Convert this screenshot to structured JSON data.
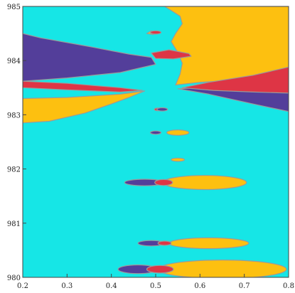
{
  "chart_data": {
    "type": "contour-region-plot",
    "title": "",
    "xlabel": "",
    "ylabel": "",
    "xlim": [
      0.2,
      0.8
    ],
    "ylim": [
      980,
      985
    ],
    "grid": false,
    "legend": "none",
    "x_ticks": [
      {
        "value": 0.2,
        "label": "0.2"
      },
      {
        "value": 0.3,
        "label": "0.3"
      },
      {
        "value": 0.4,
        "label": "0.4"
      },
      {
        "value": 0.5,
        "label": "0.5"
      },
      {
        "value": 0.6,
        "label": "0.6"
      },
      {
        "value": 0.7,
        "label": "0.7"
      },
      {
        "value": 0.8,
        "label": "0.8"
      }
    ],
    "y_ticks": [
      {
        "value": 980,
        "label": "980"
      },
      {
        "value": 981,
        "label": "981"
      },
      {
        "value": 982,
        "label": "982"
      },
      {
        "value": 983,
        "label": "983"
      },
      {
        "value": 984,
        "label": "984"
      },
      {
        "value": 985,
        "label": "985"
      }
    ],
    "colors": {
      "background": "#16e6e6",
      "yellow": "#fdc010",
      "purple": "#533e9a",
      "red": "#de3545",
      "boundary": "#9a9a9a"
    },
    "regions": [
      {
        "color": "yellow",
        "points": [
          [
            0.52,
            985
          ],
          [
            0.8,
            985
          ],
          [
            0.8,
            983.7
          ],
          [
            0.6,
            983.6
          ],
          [
            0.545,
            983.55
          ],
          [
            0.555,
            983.75
          ],
          [
            0.56,
            983.95
          ],
          [
            0.55,
            984.15
          ],
          [
            0.535,
            984.35
          ],
          [
            0.545,
            984.5
          ],
          [
            0.56,
            984.68
          ],
          [
            0.555,
            984.82
          ],
          [
            0.53,
            984.95
          ]
        ]
      },
      {
        "color": "purple",
        "points": [
          [
            0.2,
            984.5
          ],
          [
            0.24,
            984.42
          ],
          [
            0.35,
            984.26
          ],
          [
            0.44,
            984.12
          ],
          [
            0.49,
            984.06
          ],
          [
            0.5,
            983.93
          ],
          [
            0.42,
            983.78
          ],
          [
            0.3,
            983.68
          ],
          [
            0.2,
            983.62
          ]
        ]
      },
      {
        "color": "purple",
        "points": [
          [
            0.8,
            983.62
          ],
          [
            0.72,
            983.55
          ],
          [
            0.6,
            983.5
          ],
          [
            0.55,
            983.48
          ],
          [
            0.62,
            983.38
          ],
          [
            0.72,
            983.2
          ],
          [
            0.8,
            983.06
          ]
        ]
      },
      {
        "color": "red",
        "points": [
          [
            0.8,
            983.88
          ],
          [
            0.72,
            983.73
          ],
          [
            0.62,
            983.6
          ],
          [
            0.56,
            983.5
          ],
          [
            0.63,
            983.45
          ],
          [
            0.72,
            983.42
          ],
          [
            0.8,
            983.4
          ]
        ]
      },
      {
        "color": "red",
        "points": [
          [
            0.2,
            983.5
          ],
          [
            0.3,
            983.46
          ],
          [
            0.42,
            983.42
          ],
          [
            0.47,
            983.45
          ],
          [
            0.42,
            983.5
          ],
          [
            0.3,
            983.58
          ],
          [
            0.2,
            983.62
          ]
        ]
      },
      {
        "color": "yellow",
        "points": [
          [
            0.2,
            983.3
          ],
          [
            0.3,
            983.32
          ],
          [
            0.42,
            983.38
          ],
          [
            0.475,
            983.44
          ],
          [
            0.44,
            983.32
          ],
          [
            0.4,
            983.2
          ],
          [
            0.34,
            983.03
          ],
          [
            0.26,
            982.88
          ],
          [
            0.2,
            982.85
          ]
        ]
      },
      {
        "color": "red",
        "points": [
          [
            0.49,
            984.14
          ],
          [
            0.53,
            984.2
          ],
          [
            0.575,
            984.13
          ],
          [
            0.58,
            984.08
          ],
          [
            0.54,
            984.03
          ],
          [
            0.5,
            984.04
          ]
        ]
      },
      {
        "color": "yellow",
        "points": [
          [
            0.48,
            984.5
          ],
          [
            0.49,
            984.55
          ],
          [
            0.5,
            984.52
          ],
          [
            0.495,
            984.48
          ]
        ]
      }
    ],
    "ellipses": [
      {
        "color": "red",
        "cx": 0.5,
        "cy": 984.52,
        "rx": 0.012,
        "ry": 0.03
      },
      {
        "color": "red",
        "cx": 0.505,
        "cy": 983.1,
        "rx": 0.008,
        "ry": 0.025
      },
      {
        "color": "purple",
        "cx": 0.515,
        "cy": 983.1,
        "rx": 0.012,
        "ry": 0.03
      },
      {
        "color": "yellow",
        "cx": 0.55,
        "cy": 982.67,
        "rx": 0.025,
        "ry": 0.05
      },
      {
        "color": "purple",
        "cx": 0.5,
        "cy": 982.67,
        "rx": 0.012,
        "ry": 0.03
      },
      {
        "color": "yellow",
        "cx": 0.55,
        "cy": 982.17,
        "rx": 0.015,
        "ry": 0.03
      },
      {
        "color": "yellow",
        "cx": 0.61,
        "cy": 981.75,
        "rx": 0.095,
        "ry": 0.13
      },
      {
        "color": "purple",
        "cx": 0.475,
        "cy": 981.75,
        "rx": 0.045,
        "ry": 0.06
      },
      {
        "color": "red",
        "cx": 0.518,
        "cy": 981.75,
        "rx": 0.02,
        "ry": 0.055
      },
      {
        "color": "yellow",
        "cx": 0.62,
        "cy": 980.63,
        "rx": 0.09,
        "ry": 0.1
      },
      {
        "color": "purple",
        "cx": 0.49,
        "cy": 980.63,
        "rx": 0.03,
        "ry": 0.05
      },
      {
        "color": "red",
        "cx": 0.52,
        "cy": 980.63,
        "rx": 0.015,
        "ry": 0.04
      },
      {
        "color": "yellow",
        "cx": 0.65,
        "cy": 980.15,
        "rx": 0.145,
        "ry": 0.17
      },
      {
        "color": "purple",
        "cx": 0.46,
        "cy": 980.15,
        "rx": 0.045,
        "ry": 0.08
      },
      {
        "color": "red",
        "cx": 0.51,
        "cy": 980.15,
        "rx": 0.03,
        "ry": 0.07
      }
    ]
  }
}
